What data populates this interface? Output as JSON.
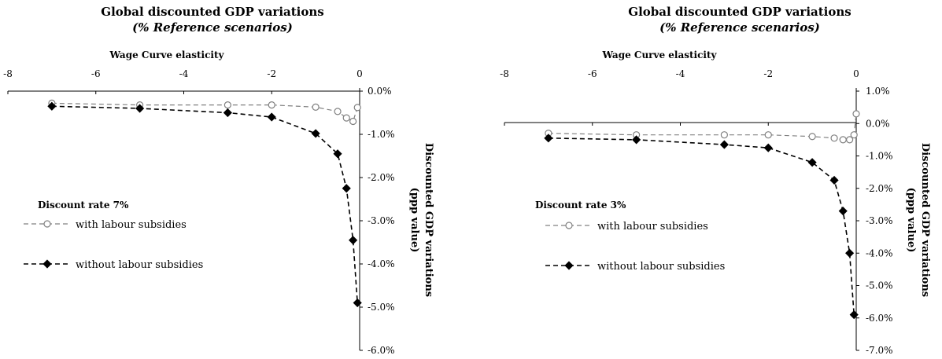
{
  "chart_data": [
    {
      "type": "line",
      "title": "Global discounted GDP variations",
      "subtitle": "(% Reference scenarios)",
      "xlabel": "Wage Curve elasticity",
      "ylabel": "Discounted GDP variations (ppp value)",
      "ylabel_lines": [
        "Discounted GDP variations",
        "(ppp value)"
      ],
      "note": "Discount rate 7%",
      "xlim": [
        -8,
        0
      ],
      "ylim": [
        -6.0,
        0.0
      ],
      "x_ticks": [
        -8,
        -6,
        -4,
        -2,
        0
      ],
      "x_tick_labels": [
        "-8",
        "-6",
        "-4",
        "-2",
        "0"
      ],
      "y_ticks": [
        0.0,
        -1.0,
        -2.0,
        -3.0,
        -4.0,
        -5.0,
        -6.0
      ],
      "y_tick_labels": [
        "0.0%",
        "-1.0%",
        "-2.0%",
        "-3.0%",
        "-4.0%",
        "-5.0%",
        "-6.0%"
      ],
      "grid": false,
      "legend_position": "left",
      "series": [
        {
          "name": "with labour subsidies",
          "color": "#808080",
          "marker": "circle",
          "x": [
            -7,
            -5,
            -3,
            -2,
            -1,
            -0.5,
            -0.3,
            -0.15,
            -0.05
          ],
          "y": [
            -0.28,
            -0.32,
            -0.32,
            -0.32,
            -0.37,
            -0.47,
            -0.62,
            -0.7,
            -0.38
          ]
        },
        {
          "name": "without labour subsidies",
          "color": "#000000",
          "marker": "diamond",
          "x": [
            -7,
            -5,
            -3,
            -2,
            -1,
            -0.5,
            -0.3,
            -0.15,
            -0.05
          ],
          "y": [
            -0.35,
            -0.4,
            -0.5,
            -0.6,
            -0.98,
            -1.45,
            -2.25,
            -3.45,
            -4.9
          ]
        }
      ]
    },
    {
      "type": "line",
      "title": "Global discounted GDP variations",
      "subtitle": "(% Reference scenarios)",
      "xlabel": "Wage Curve elasticity",
      "ylabel": "Discounted GDP variations (ppp value)",
      "ylabel_lines": [
        "Discounted GDP variations",
        "(ppp value)"
      ],
      "note": "Discount rate 3%",
      "xlim": [
        -8,
        0
      ],
      "ylim": [
        -7.0,
        1.0
      ],
      "x_ticks": [
        -8,
        -6,
        -4,
        -2,
        0
      ],
      "x_tick_labels": [
        "-8",
        "-6",
        "-4",
        "-2",
        "0"
      ],
      "y_ticks": [
        1.0,
        0.0,
        -1.0,
        -2.0,
        -3.0,
        -4.0,
        -5.0,
        -6.0,
        -7.0
      ],
      "y_tick_labels": [
        "1.0%",
        "0.0%",
        "-1.0%",
        "-2.0%",
        "-3.0%",
        "-4.0%",
        "-5.0%",
        "-6.0%",
        "-7.0%"
      ],
      "grid": false,
      "legend_position": "left",
      "series": [
        {
          "name": "with labour subsidies",
          "color": "#808080",
          "marker": "circle",
          "x": [
            -7,
            -5,
            -3,
            -2,
            -1,
            -0.5,
            -0.3,
            -0.15,
            -0.05,
            0
          ],
          "y": [
            -0.3,
            -0.35,
            -0.35,
            -0.35,
            -0.4,
            -0.45,
            -0.5,
            -0.5,
            -0.35,
            0.3
          ]
        },
        {
          "name": "without labour subsidies",
          "color": "#000000",
          "marker": "diamond",
          "x": [
            -7,
            -5,
            -3,
            -2,
            -1,
            -0.5,
            -0.3,
            -0.15,
            -0.05
          ],
          "y": [
            -0.45,
            -0.5,
            -0.65,
            -0.75,
            -1.2,
            -1.75,
            -2.7,
            -4.0,
            -5.9
          ]
        }
      ]
    }
  ]
}
